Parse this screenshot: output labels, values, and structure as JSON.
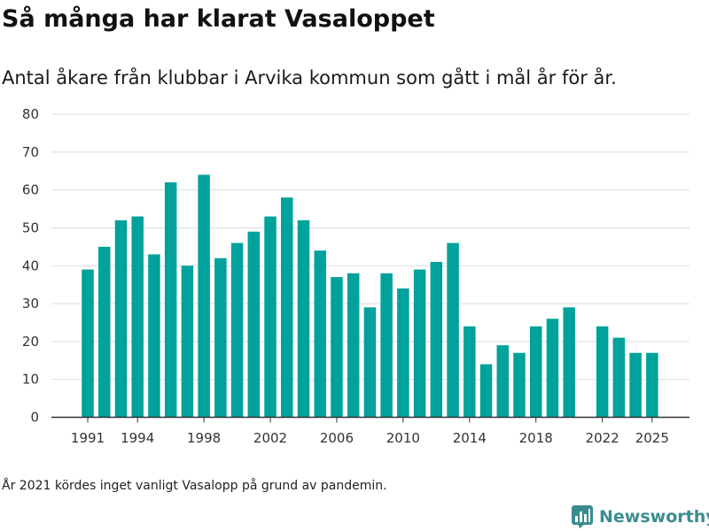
{
  "title": "Så många har klarat Vasaloppet",
  "subtitle": "Antal åkare från klubbar i Arvika kommun som gått i mål år för år.",
  "note": "År 2021 kördes inget vanligt Vasalopp på grund av pandemin.",
  "brand": {
    "name": "Newsworthy",
    "icon": "bar-chart-logo-icon",
    "color": "#3b8c8f"
  },
  "colors": {
    "bar": "#00a29b",
    "grid": "#dcdcdc",
    "axis": "#333333"
  },
  "chart_data": {
    "type": "bar",
    "title": "Så många har klarat Vasaloppet",
    "xlabel": "",
    "ylabel": "",
    "ylim": [
      0,
      80
    ],
    "yticks": [
      0,
      10,
      20,
      30,
      40,
      50,
      60,
      70,
      80
    ],
    "xticks": [
      1991,
      1994,
      1998,
      2002,
      2006,
      2010,
      2014,
      2018,
      2022,
      2025
    ],
    "grid": true,
    "categories": [
      1991,
      1992,
      1993,
      1994,
      1995,
      1996,
      1997,
      1998,
      1999,
      2000,
      2001,
      2002,
      2003,
      2004,
      2005,
      2006,
      2007,
      2008,
      2009,
      2010,
      2011,
      2012,
      2013,
      2014,
      2015,
      2016,
      2017,
      2018,
      2019,
      2020,
      2021,
      2022,
      2023,
      2024,
      2025
    ],
    "values": [
      39,
      45,
      52,
      53,
      43,
      62,
      40,
      64,
      42,
      46,
      49,
      53,
      58,
      52,
      44,
      37,
      38,
      29,
      38,
      34,
      39,
      41,
      46,
      24,
      14,
      19,
      17,
      24,
      26,
      29,
      null,
      24,
      21,
      17,
      17
    ]
  }
}
